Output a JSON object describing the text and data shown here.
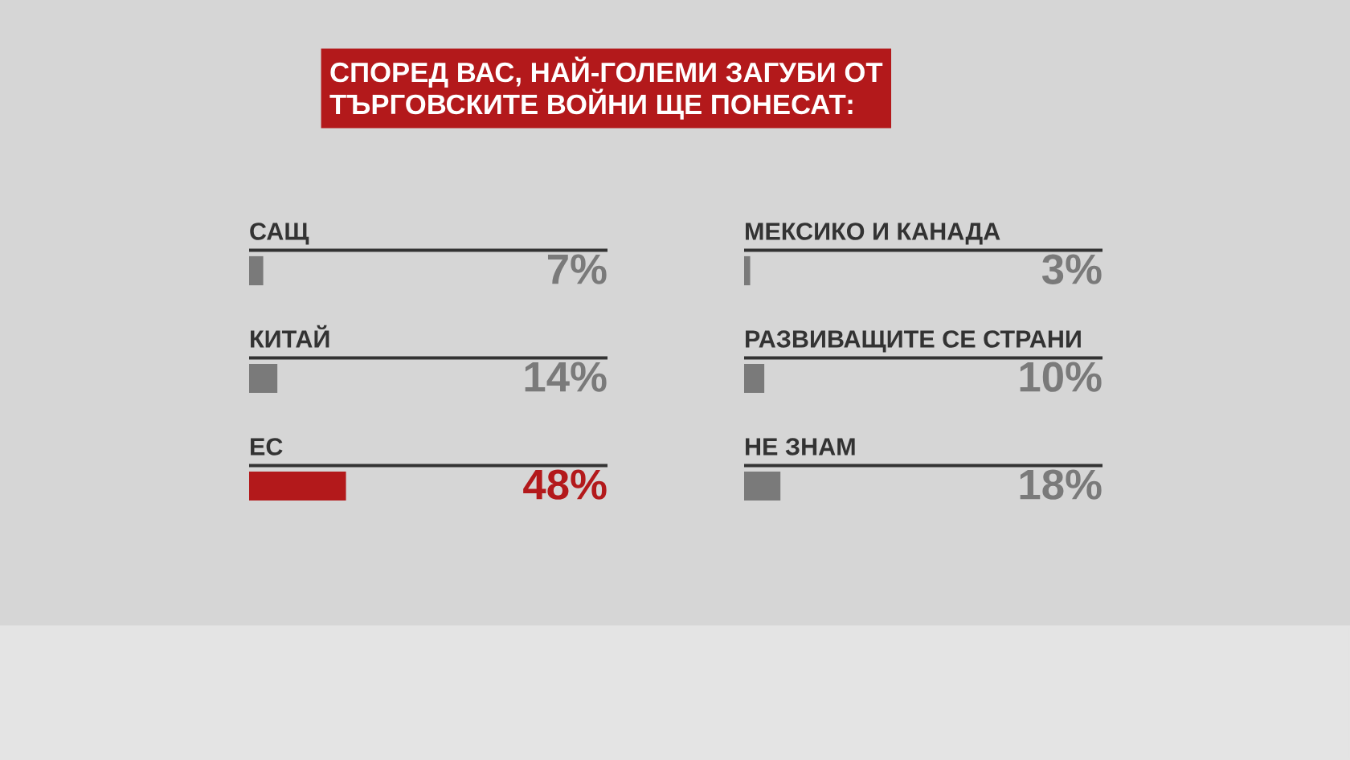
{
  "chart_data": [
    {
      "type": "bar",
      "orientation": "horizontal",
      "title": "СПОРЕД ВАС, НАЙ-ГОЛЕМИ ЗАГУБИ ОТ\nТЪРГОВСКИТЕ ВОЙНИ ЩЕ ПОНЕСАТ:",
      "categories": [
        "САЩ",
        "КИТАЙ",
        "ЕС"
      ],
      "values": [
        7,
        14,
        48
      ],
      "value_labels": [
        "7%",
        "14%",
        "48%"
      ],
      "colors": [
        "#7a7a7a",
        "#7a7a7a",
        "#b3191b"
      ]
    },
    {
      "type": "bar",
      "orientation": "horizontal",
      "categories": [
        "МЕКСИКО И КАНАДА",
        "РАЗВИВАЩИТЕ СЕ СТРАНИ",
        "НЕ ЗНАМ"
      ],
      "values": [
        3,
        10,
        18
      ],
      "value_labels": [
        "3%",
        "10%",
        "18%"
      ],
      "colors": [
        "#7a7a7a",
        "#7a7a7a",
        "#7a7a7a"
      ]
    }
  ]
}
